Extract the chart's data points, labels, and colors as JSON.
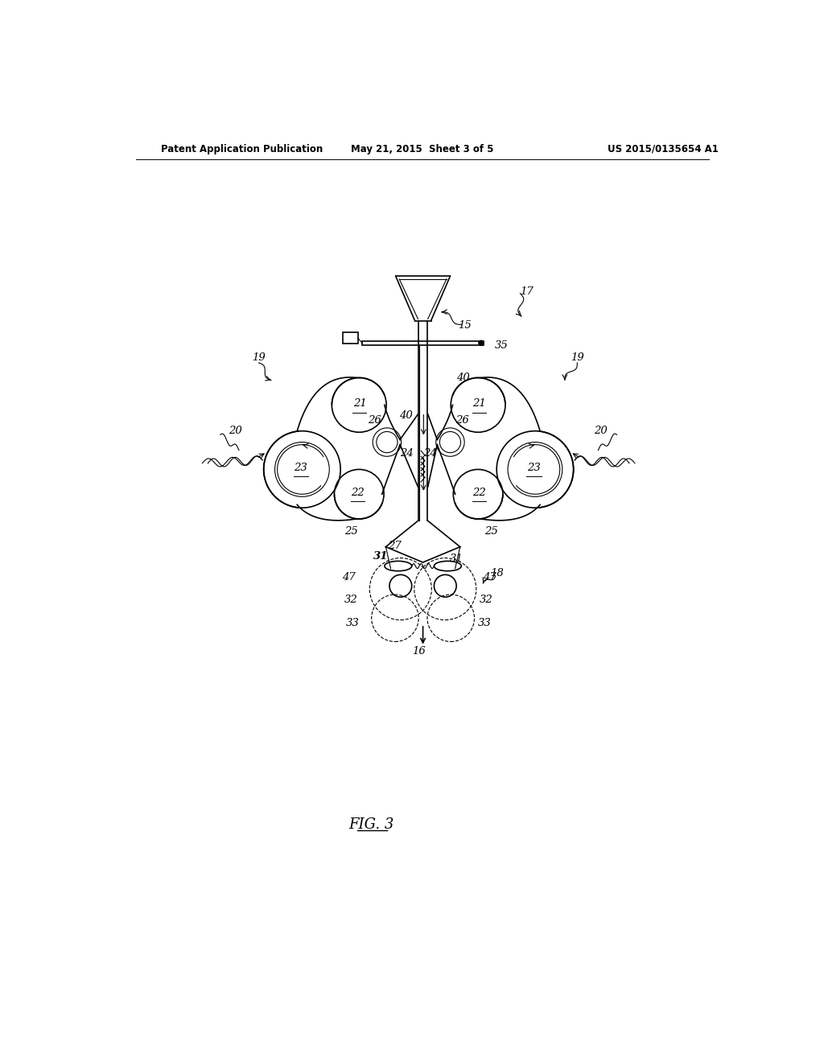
{
  "title_left": "Patent Application Publication",
  "title_mid": "May 21, 2015  Sheet 3 of 5",
  "title_right": "US 2015/0135654 A1",
  "fig_label": "FIG. 3",
  "bg_color": "#ffffff",
  "line_color": "#000000",
  "header_fontsize": 9,
  "label_fontsize": 9.5,
  "fig_label_fontsize": 12
}
